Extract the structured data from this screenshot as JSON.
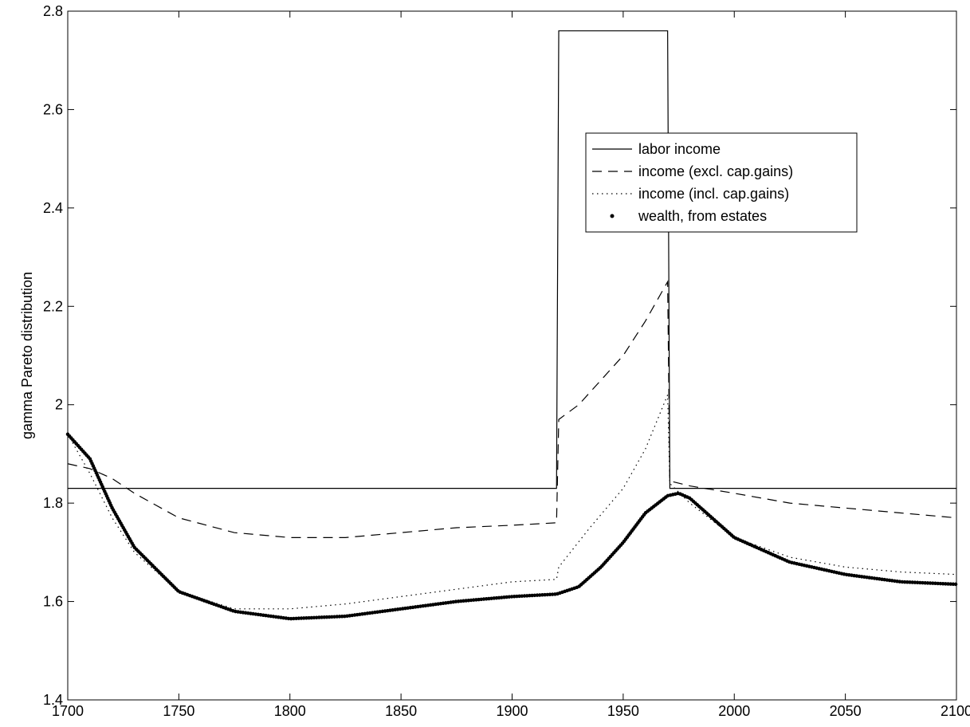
{
  "chart_data": {
    "type": "line",
    "ylabel": "gamma Pareto distribution",
    "xlim": [
      1700,
      2100
    ],
    "xticks": [
      1700,
      1750,
      1800,
      1850,
      1900,
      1950,
      2000,
      2050,
      2100
    ],
    "ylim": [
      1.4,
      2.8
    ],
    "yticks": [
      1.4,
      1.6,
      1.8,
      2,
      2.2,
      2.4,
      2.6,
      2.8
    ],
    "legend": "upper right",
    "series": [
      {
        "name": "labor income",
        "color": "#000000",
        "style": "solid",
        "x": [
          1700,
          1920,
          1921,
          1970,
          1971,
          2100
        ],
        "values": [
          1.83,
          1.83,
          2.76,
          2.76,
          1.83,
          1.83
        ]
      },
      {
        "name": "income (excl. cap.gains)",
        "color": "#000000",
        "style": "dashed",
        "x": [
          1700,
          1710,
          1720,
          1730,
          1750,
          1775,
          1800,
          1825,
          1850,
          1875,
          1900,
          1920,
          1921,
          1930,
          1940,
          1950,
          1960,
          1970,
          1971,
          1980,
          2000,
          2025,
          2050,
          2075,
          2100
        ],
        "values": [
          1.88,
          1.87,
          1.85,
          1.82,
          1.77,
          1.74,
          1.73,
          1.73,
          1.74,
          1.75,
          1.755,
          1.76,
          1.97,
          2.0,
          2.05,
          2.1,
          2.17,
          2.25,
          1.845,
          1.835,
          1.82,
          1.8,
          1.79,
          1.78,
          1.77
        ]
      },
      {
        "name": "income (incl. cap.gains)",
        "color": "#000000",
        "style": "dotted",
        "x": [
          1700,
          1710,
          1720,
          1730,
          1750,
          1775,
          1800,
          1825,
          1850,
          1875,
          1900,
          1920,
          1921,
          1935,
          1950,
          1960,
          1970,
          1971,
          1980,
          2000,
          2025,
          2050,
          2075,
          2100
        ],
        "values": [
          1.94,
          1.86,
          1.77,
          1.7,
          1.62,
          1.585,
          1.585,
          1.595,
          1.61,
          1.625,
          1.64,
          1.645,
          1.67,
          1.75,
          1.83,
          1.91,
          2.02,
          1.84,
          1.8,
          1.73,
          1.69,
          1.67,
          1.66,
          1.655
        ]
      },
      {
        "name": "wealth, from estates",
        "color": "#000000",
        "style": "dots",
        "x": [
          1700,
          1710,
          1720,
          1730,
          1750,
          1775,
          1800,
          1825,
          1850,
          1875,
          1900,
          1920,
          1930,
          1940,
          1950,
          1960,
          1970,
          1975,
          1980,
          2000,
          2025,
          2050,
          2075,
          2100
        ],
        "values": [
          1.94,
          1.89,
          1.79,
          1.71,
          1.62,
          1.58,
          1.565,
          1.57,
          1.585,
          1.6,
          1.61,
          1.615,
          1.63,
          1.67,
          1.72,
          1.78,
          1.815,
          1.82,
          1.81,
          1.73,
          1.68,
          1.655,
          1.64,
          1.635
        ]
      }
    ]
  }
}
